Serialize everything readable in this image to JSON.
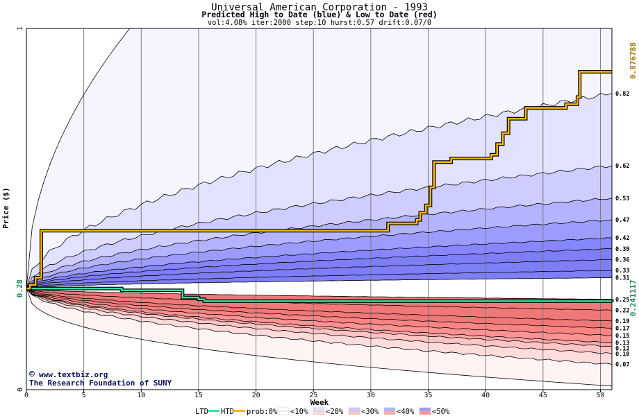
{
  "chart_data": {
    "type": "area",
    "title": "Universal American Corporation - 1993",
    "subtitle": "Predicted High to Date (blue) &  Low to Date (red)",
    "params": "vol:4.08% iter:2000 step:10 hurst:0.57 drift:0.07/0",
    "xlabel": "Week",
    "ylabel": "Price ($)",
    "xlim": [
      0,
      51
    ],
    "ylim": [
      0,
      1
    ],
    "x_ticks": [
      0,
      5,
      10,
      15,
      20,
      25,
      30,
      35,
      40,
      45,
      50
    ],
    "y_ticks": [
      0,
      1
    ],
    "start_price": "0.28",
    "start_value": 0.28,
    "grid": true,
    "legend_position": "bottom",
    "high_quantiles": [
      {
        "label": "0.82",
        "value": 0.82
      },
      {
        "label": "0.62",
        "value": 0.62
      },
      {
        "label": "0.53",
        "value": 0.53
      },
      {
        "label": "0.47",
        "value": 0.47
      },
      {
        "label": "0.42",
        "value": 0.42
      },
      {
        "label": "0.39",
        "value": 0.39
      },
      {
        "label": "0.36",
        "value": 0.36
      },
      {
        "label": "0.33",
        "value": 0.33
      },
      {
        "label": "0.31",
        "value": 0.31
      }
    ],
    "high_outer_at_week_9": 1.0,
    "low_quantiles": [
      {
        "label": "0.25",
        "value": 0.25
      },
      {
        "label": "0.22",
        "value": 0.22
      },
      {
        "label": "0.19",
        "value": 0.19
      },
      {
        "label": "0.17",
        "value": 0.17
      },
      {
        "label": "0.15",
        "value": 0.15
      },
      {
        "label": "0.13",
        "value": 0.13
      },
      {
        "label": "0.12",
        "value": 0.12
      },
      {
        "label": "0.10",
        "value": 0.1
      },
      {
        "label": "0.07",
        "value": 0.07
      }
    ],
    "low_outer_end": 0.01,
    "high_to_date": {
      "name": "HTD",
      "final_label": "0.876788",
      "points": [
        [
          0,
          0.28
        ],
        [
          0.3,
          0.29
        ],
        [
          0.8,
          0.31
        ],
        [
          1.3,
          0.44
        ],
        [
          31,
          0.44
        ],
        [
          31.5,
          0.46
        ],
        [
          34,
          0.47
        ],
        [
          34.3,
          0.49
        ],
        [
          34.8,
          0.51
        ],
        [
          35.2,
          0.56
        ],
        [
          35.5,
          0.63
        ],
        [
          37,
          0.64
        ],
        [
          40.5,
          0.65
        ],
        [
          41,
          0.68
        ],
        [
          41.5,
          0.71
        ],
        [
          42,
          0.75
        ],
        [
          43.5,
          0.78
        ],
        [
          47,
          0.79
        ],
        [
          48,
          0.81
        ],
        [
          48.2,
          0.88
        ],
        [
          51,
          0.88
        ]
      ]
    },
    "low_to_date": {
      "name": "LTD",
      "final_label": "0.241117",
      "points": [
        [
          0,
          0.28
        ],
        [
          8,
          0.28
        ],
        [
          8.3,
          0.275
        ],
        [
          13.2,
          0.275
        ],
        [
          13.6,
          0.255
        ],
        [
          15,
          0.25
        ],
        [
          15.5,
          0.245
        ],
        [
          51,
          0.242
        ]
      ]
    },
    "legend": {
      "ltd": "LTD",
      "htd": "HTD",
      "prob": "prob:0%",
      "bins": [
        "<10%",
        "<20%",
        "<30%",
        "<40%",
        "<50%"
      ]
    },
    "colors": {
      "htd_line": "#ffb800",
      "ltd_line": "#33e0a0",
      "htd_label": "#a07800",
      "ltd_label": "#1a8a5a",
      "start_label": "#1a8a5a",
      "high_bands": [
        "#f5f5ff",
        "#e2e2ff",
        "#cdcdff",
        "#b3b3ff",
        "#9c9cff",
        "#8686ff",
        "#7e7ef7"
      ],
      "low_bands": [
        "#fff3f3",
        "#ffdcdc",
        "#ffc4c4",
        "#ffaaaa",
        "#ff9393",
        "#f88484",
        "#f07878"
      ]
    }
  },
  "credits": {
    "copyright_symbol": "©",
    "site": "www.textbiz.org",
    "org": "The Research Foundation of SUNY"
  }
}
